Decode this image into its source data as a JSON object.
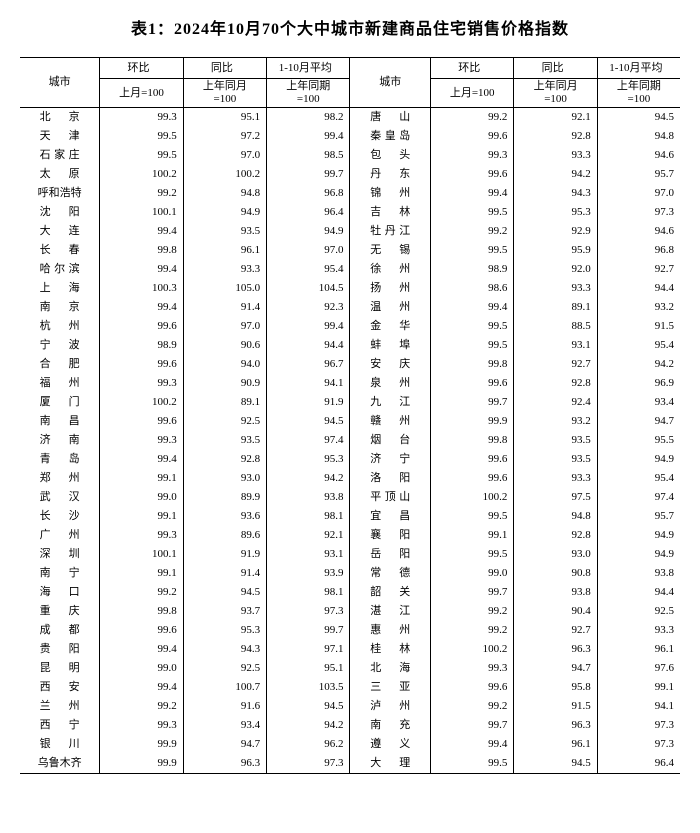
{
  "title": "表1：2024年10月70个大中城市新建商品住宅销售价格指数",
  "header1": {
    "col1": "环比",
    "col2": "同比",
    "col3": "1-10月平均"
  },
  "header2": {
    "city": "城市",
    "sub1": "上月=100",
    "sub2": "上年同月=100",
    "sub3": "上年同期=100"
  },
  "rows": [
    {
      "c1": "北京",
      "w1": "w2",
      "v1": "99.3",
      "v2": "95.1",
      "v3": "98.2",
      "c2": "唐山",
      "w2": "w2",
      "v4": "99.2",
      "v5": "92.1",
      "v6": "94.5"
    },
    {
      "c1": "天津",
      "w1": "w2",
      "v1": "99.5",
      "v2": "97.2",
      "v3": "99.4",
      "c2": "秦皇岛",
      "w2": "w3",
      "v4": "99.6",
      "v5": "92.8",
      "v6": "94.8"
    },
    {
      "c1": "石家庄",
      "w1": "w3",
      "v1": "99.5",
      "v2": "97.0",
      "v3": "98.5",
      "c2": "包头",
      "w2": "w2",
      "v4": "99.3",
      "v5": "93.3",
      "v6": "94.6"
    },
    {
      "c1": "太原",
      "w1": "w2",
      "v1": "100.2",
      "v2": "100.2",
      "v3": "99.7",
      "c2": "丹东",
      "w2": "w2",
      "v4": "99.6",
      "v5": "94.2",
      "v6": "95.7"
    },
    {
      "c1": "呼和浩特",
      "w1": "w4",
      "v1": "99.2",
      "v2": "94.8",
      "v3": "96.8",
      "c2": "锦州",
      "w2": "w2",
      "v4": "99.4",
      "v5": "94.3",
      "v6": "97.0"
    },
    {
      "c1": "沈阳",
      "w1": "w2",
      "v1": "100.1",
      "v2": "94.9",
      "v3": "96.4",
      "c2": "吉林",
      "w2": "w2",
      "v4": "99.5",
      "v5": "95.3",
      "v6": "97.3"
    },
    {
      "c1": "大连",
      "w1": "w2",
      "v1": "99.4",
      "v2": "93.5",
      "v3": "94.9",
      "c2": "牡丹江",
      "w2": "w3",
      "v4": "99.2",
      "v5": "92.9",
      "v6": "94.6"
    },
    {
      "c1": "长春",
      "w1": "w2",
      "v1": "99.8",
      "v2": "96.1",
      "v3": "97.0",
      "c2": "无锡",
      "w2": "w2",
      "v4": "99.5",
      "v5": "95.9",
      "v6": "96.8"
    },
    {
      "c1": "哈尔滨",
      "w1": "w3",
      "v1": "99.4",
      "v2": "93.3",
      "v3": "95.4",
      "c2": "徐州",
      "w2": "w2",
      "v4": "98.9",
      "v5": "92.0",
      "v6": "92.7"
    },
    {
      "c1": "上海",
      "w1": "w2",
      "v1": "100.3",
      "v2": "105.0",
      "v3": "104.5",
      "c2": "扬州",
      "w2": "w2",
      "v4": "98.6",
      "v5": "93.3",
      "v6": "94.4"
    },
    {
      "c1": "南京",
      "w1": "w2",
      "v1": "99.4",
      "v2": "91.4",
      "v3": "92.3",
      "c2": "温州",
      "w2": "w2",
      "v4": "99.4",
      "v5": "89.1",
      "v6": "93.2"
    },
    {
      "c1": "杭州",
      "w1": "w2",
      "v1": "99.6",
      "v2": "97.0",
      "v3": "99.4",
      "c2": "金华",
      "w2": "w2",
      "v4": "99.5",
      "v5": "88.5",
      "v6": "91.5"
    },
    {
      "c1": "宁波",
      "w1": "w2",
      "v1": "98.9",
      "v2": "90.6",
      "v3": "94.4",
      "c2": "蚌埠",
      "w2": "w2",
      "v4": "99.5",
      "v5": "93.1",
      "v6": "95.4"
    },
    {
      "c1": "合肥",
      "w1": "w2",
      "v1": "99.6",
      "v2": "94.0",
      "v3": "96.7",
      "c2": "安庆",
      "w2": "w2",
      "v4": "99.8",
      "v5": "92.7",
      "v6": "94.2"
    },
    {
      "c1": "福州",
      "w1": "w2",
      "v1": "99.3",
      "v2": "90.9",
      "v3": "94.1",
      "c2": "泉州",
      "w2": "w2",
      "v4": "99.6",
      "v5": "92.8",
      "v6": "96.9"
    },
    {
      "c1": "厦门",
      "w1": "w2",
      "v1": "100.2",
      "v2": "89.1",
      "v3": "91.9",
      "c2": "九江",
      "w2": "w2",
      "v4": "99.7",
      "v5": "92.4",
      "v6": "93.4"
    },
    {
      "c1": "南昌",
      "w1": "w2",
      "v1": "99.6",
      "v2": "92.5",
      "v3": "94.5",
      "c2": "赣州",
      "w2": "w2",
      "v4": "99.9",
      "v5": "93.2",
      "v6": "94.7"
    },
    {
      "c1": "济南",
      "w1": "w2",
      "v1": "99.3",
      "v2": "93.5",
      "v3": "97.4",
      "c2": "烟台",
      "w2": "w2",
      "v4": "99.8",
      "v5": "93.5",
      "v6": "95.5"
    },
    {
      "c1": "青岛",
      "w1": "w2",
      "v1": "99.4",
      "v2": "92.8",
      "v3": "95.3",
      "c2": "济宁",
      "w2": "w2",
      "v4": "99.6",
      "v5": "93.5",
      "v6": "94.9"
    },
    {
      "c1": "郑州",
      "w1": "w2",
      "v1": "99.1",
      "v2": "93.0",
      "v3": "94.2",
      "c2": "洛阳",
      "w2": "w2",
      "v4": "99.6",
      "v5": "93.3",
      "v6": "95.4"
    },
    {
      "c1": "武汉",
      "w1": "w2",
      "v1": "99.0",
      "v2": "89.9",
      "v3": "93.8",
      "c2": "平顶山",
      "w2": "w3",
      "v4": "100.2",
      "v5": "97.5",
      "v6": "97.4"
    },
    {
      "c1": "长沙",
      "w1": "w2",
      "v1": "99.1",
      "v2": "93.6",
      "v3": "98.1",
      "c2": "宜昌",
      "w2": "w2",
      "v4": "99.5",
      "v5": "94.8",
      "v6": "95.7"
    },
    {
      "c1": "广州",
      "w1": "w2",
      "v1": "99.3",
      "v2": "89.6",
      "v3": "92.1",
      "c2": "襄阳",
      "w2": "w2",
      "v4": "99.1",
      "v5": "92.8",
      "v6": "94.9"
    },
    {
      "c1": "深圳",
      "w1": "w2",
      "v1": "100.1",
      "v2": "91.9",
      "v3": "93.1",
      "c2": "岳阳",
      "w2": "w2",
      "v4": "99.5",
      "v5": "93.0",
      "v6": "94.9"
    },
    {
      "c1": "南宁",
      "w1": "w2",
      "v1": "99.1",
      "v2": "91.4",
      "v3": "93.9",
      "c2": "常德",
      "w2": "w2",
      "v4": "99.0",
      "v5": "90.8",
      "v6": "93.8"
    },
    {
      "c1": "海口",
      "w1": "w2",
      "v1": "99.2",
      "v2": "94.5",
      "v3": "98.1",
      "c2": "韶关",
      "w2": "w2",
      "v4": "99.7",
      "v5": "93.8",
      "v6": "94.4"
    },
    {
      "c1": "重庆",
      "w1": "w2",
      "v1": "99.8",
      "v2": "93.7",
      "v3": "97.3",
      "c2": "湛江",
      "w2": "w2",
      "v4": "99.2",
      "v5": "90.4",
      "v6": "92.5"
    },
    {
      "c1": "成都",
      "w1": "w2",
      "v1": "99.6",
      "v2": "95.3",
      "v3": "99.7",
      "c2": "惠州",
      "w2": "w2",
      "v4": "99.2",
      "v5": "92.7",
      "v6": "93.3"
    },
    {
      "c1": "贵阳",
      "w1": "w2",
      "v1": "99.4",
      "v2": "94.3",
      "v3": "97.1",
      "c2": "桂林",
      "w2": "w2",
      "v4": "100.2",
      "v5": "96.3",
      "v6": "96.1"
    },
    {
      "c1": "昆明",
      "w1": "w2",
      "v1": "99.0",
      "v2": "92.5",
      "v3": "95.1",
      "c2": "北海",
      "w2": "w2",
      "v4": "99.3",
      "v5": "94.7",
      "v6": "97.6"
    },
    {
      "c1": "西安",
      "w1": "w2",
      "v1": "99.4",
      "v2": "100.7",
      "v3": "103.5",
      "c2": "三亚",
      "w2": "w2",
      "v4": "99.6",
      "v5": "95.8",
      "v6": "99.1"
    },
    {
      "c1": "兰州",
      "w1": "w2",
      "v1": "99.2",
      "v2": "91.6",
      "v3": "94.5",
      "c2": "泸州",
      "w2": "w2",
      "v4": "99.2",
      "v5": "91.5",
      "v6": "94.1"
    },
    {
      "c1": "西宁",
      "w1": "w2",
      "v1": "99.3",
      "v2": "93.4",
      "v3": "94.2",
      "c2": "南充",
      "w2": "w2",
      "v4": "99.7",
      "v5": "96.3",
      "v6": "97.3"
    },
    {
      "c1": "银川",
      "w1": "w2",
      "v1": "99.9",
      "v2": "94.7",
      "v3": "96.2",
      "c2": "遵义",
      "w2": "w2",
      "v4": "99.4",
      "v5": "96.1",
      "v6": "97.3"
    },
    {
      "c1": "乌鲁木齐",
      "w1": "w4",
      "v1": "99.9",
      "v2": "96.3",
      "v3": "97.3",
      "c2": "大理",
      "w2": "w2",
      "v4": "99.5",
      "v5": "94.5",
      "v6": "96.4"
    }
  ]
}
